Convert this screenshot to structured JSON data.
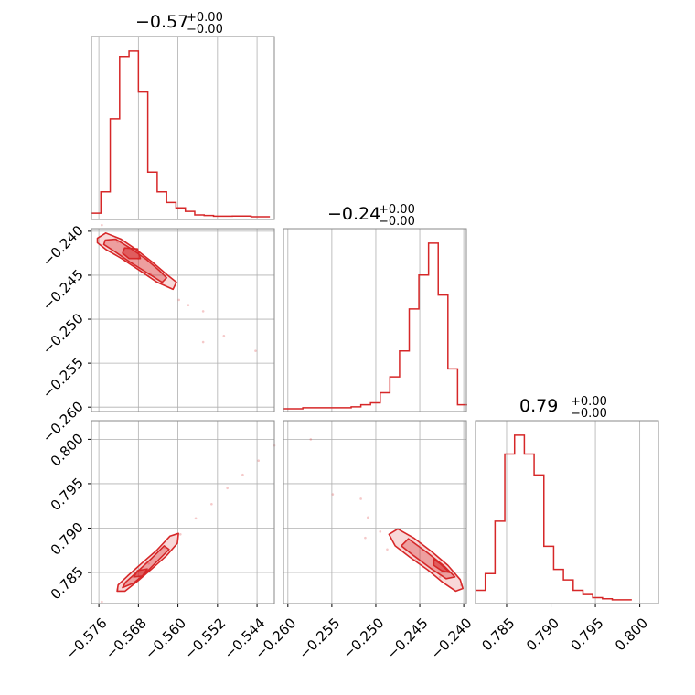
{
  "chart_data": {
    "type": "corner",
    "color": "#d62728",
    "grid": true,
    "parameters": [
      {
        "title": {
          "main": "−0.57",
          "upper": "+0.00",
          "lower": "−0.00"
        },
        "range": [
          -0.5775,
          -0.5405
        ],
        "ticks": [
          -0.576,
          -0.568,
          -0.56,
          -0.552,
          -0.544
        ],
        "tick_labels": [
          "−0.576",
          "−0.568",
          "−0.560",
          "−0.552",
          "−0.544"
        ],
        "hist": {
          "bin_edges": [
            -0.5775,
            -0.5756,
            -0.5737,
            -0.5718,
            -0.5699,
            -0.568,
            -0.5661,
            -0.5642,
            -0.5623,
            -0.5604,
            -0.5585,
            -0.5566,
            -0.5547,
            -0.5528,
            -0.5509,
            -0.549,
            -0.5471,
            -0.5452,
            -0.5433,
            -0.5414
          ],
          "counts": [
            2,
            14,
            55,
            90,
            93,
            70,
            25,
            14,
            8,
            5,
            3,
            1,
            0.7,
            0.3,
            0.3,
            0.4,
            0.4,
            0,
            0
          ]
        }
      },
      {
        "title": {
          "main": "−0.24",
          "upper": "+0.00",
          "lower": "−0.00"
        },
        "range": [
          -0.2605,
          -0.2397
        ],
        "ticks": [
          -0.26,
          -0.255,
          -0.25,
          -0.245,
          -0.24
        ],
        "tick_labels": [
          "−0.260",
          "−0.255",
          "−0.250",
          "−0.245",
          "−0.240"
        ],
        "hist": {
          "bin_edges": [
            -0.2605,
            -0.2594,
            -0.2583,
            -0.2572,
            -0.2561,
            -0.255,
            -0.2539,
            -0.2528,
            -0.2517,
            -0.2506,
            -0.2495,
            -0.2484,
            -0.2473,
            -0.2462,
            -0.2451,
            -0.244,
            -0.2429,
            -0.2418,
            -0.2407,
            -0.2396
          ],
          "counts": [
            0,
            0,
            0.5,
            0.5,
            0.5,
            0.5,
            0.5,
            1,
            2,
            3,
            8,
            16,
            29,
            50,
            67,
            83,
            57,
            20,
            2
          ]
        }
      },
      {
        "title": {
          "main": "0.79",
          "upper": "+0.00",
          "lower": "−0.00"
        },
        "range": [
          0.7815,
          0.8021
        ],
        "ticks": [
          0.785,
          0.79,
          0.795,
          0.8
        ],
        "tick_labels": [
          "0.785",
          "0.790",
          "0.795",
          "0.800"
        ],
        "hist": {
          "bin_edges": [
            0.7815,
            0.7826,
            0.7837,
            0.7848,
            0.7859,
            0.787,
            0.7881,
            0.7892,
            0.7903,
            0.7914,
            0.7925,
            0.7936,
            0.7947,
            0.7958,
            0.7969,
            0.798,
            0.7991
          ],
          "counts": [
            5,
            13,
            38,
            70,
            79,
            70,
            60,
            26,
            15,
            10,
            5,
            3,
            1.5,
            1,
            0.5,
            0.5
          ]
        }
      }
    ],
    "pairs": [
      {
        "x_param": 0,
        "y_param": 1,
        "samples": [
          [
            -0.5754,
            -0.2393
          ],
          [
            -0.5722,
            -0.2412
          ],
          [
            -0.568,
            -0.2431
          ],
          [
            -0.5655,
            -0.2448
          ],
          [
            -0.5598,
            -0.2478
          ],
          [
            -0.5579,
            -0.2484
          ],
          [
            -0.5549,
            -0.2491
          ],
          [
            -0.5549,
            -0.2526
          ],
          [
            -0.5507,
            -0.2519
          ],
          [
            -0.5443,
            -0.2536
          ]
        ],
        "contours": [
          [
            [
              -0.5763,
              -0.2408
            ],
            [
              -0.5746,
              -0.2402
            ],
            [
              -0.5715,
              -0.2409
            ],
            [
              -0.5684,
              -0.2421
            ],
            [
              -0.5652,
              -0.2435
            ],
            [
              -0.5623,
              -0.2449
            ],
            [
              -0.5603,
              -0.2458
            ],
            [
              -0.561,
              -0.2466
            ],
            [
              -0.5642,
              -0.2458
            ],
            [
              -0.5679,
              -0.2444
            ],
            [
              -0.5714,
              -0.2431
            ],
            [
              -0.5745,
              -0.2421
            ],
            [
              -0.5763,
              -0.2413
            ]
          ],
          [
            [
              -0.5747,
              -0.241
            ],
            [
              -0.5726,
              -0.2409
            ],
            [
              -0.5697,
              -0.2419
            ],
            [
              -0.5664,
              -0.2432
            ],
            [
              -0.5637,
              -0.2445
            ],
            [
              -0.5623,
              -0.2453
            ],
            [
              -0.5632,
              -0.2458
            ],
            [
              -0.5663,
              -0.2447
            ],
            [
              -0.5697,
              -0.2435
            ],
            [
              -0.5728,
              -0.2423
            ],
            [
              -0.575,
              -0.2415
            ]
          ],
          [
            [
              -0.5708,
              -0.2419
            ],
            [
              -0.5682,
              -0.242
            ],
            [
              -0.5676,
              -0.2431
            ],
            [
              -0.5699,
              -0.2431
            ],
            [
              -0.5712,
              -0.2425
            ]
          ]
        ]
      },
      {
        "x_param": 0,
        "y_param": 2,
        "samples": [
          [
            -0.5754,
            0.7817
          ],
          [
            -0.5722,
            0.7831
          ],
          [
            -0.5691,
            0.7845
          ],
          [
            -0.5659,
            0.786
          ],
          [
            -0.5627,
            0.7878
          ],
          [
            -0.5595,
            0.7893
          ],
          [
            -0.5564,
            0.7911
          ],
          [
            -0.5532,
            0.7927
          ],
          [
            -0.55,
            0.7945
          ],
          [
            -0.5469,
            0.796
          ],
          [
            -0.5437,
            0.7976
          ],
          [
            -0.5405,
            0.7993
          ]
        ],
        "contours": [
          [
            [
              -0.5723,
              0.7829
            ],
            [
              -0.5707,
              0.7829
            ],
            [
              -0.568,
              0.7841
            ],
            [
              -0.5651,
              0.7855
            ],
            [
              -0.5623,
              0.7869
            ],
            [
              -0.5601,
              0.7883
            ],
            [
              -0.5599,
              0.7894
            ],
            [
              -0.5616,
              0.7891
            ],
            [
              -0.5643,
              0.7875
            ],
            [
              -0.5674,
              0.786
            ],
            [
              -0.5702,
              0.7846
            ],
            [
              -0.5721,
              0.7836
            ]
          ],
          [
            [
              -0.5712,
              0.7833
            ],
            [
              -0.569,
              0.7838
            ],
            [
              -0.5668,
              0.7848
            ],
            [
              -0.5643,
              0.7862
            ],
            [
              -0.5618,
              0.7876
            ],
            [
              -0.5628,
              0.788
            ],
            [
              -0.5653,
              0.7866
            ],
            [
              -0.5682,
              0.7851
            ],
            [
              -0.5706,
              0.7839
            ]
          ],
          [
            [
              -0.5689,
              0.7845
            ],
            [
              -0.5672,
              0.7846
            ],
            [
              -0.5662,
              0.7854
            ],
            [
              -0.5682,
              0.7852
            ]
          ]
        ]
      },
      {
        "x_param": 1,
        "y_param": 2,
        "samples": [
          [
            -0.2574,
            0.8
          ],
          [
            -0.2549,
            0.7938
          ],
          [
            -0.2517,
            0.7933
          ],
          [
            -0.2512,
            0.7889
          ],
          [
            -0.2487,
            0.7876
          ],
          [
            -0.2455,
            0.7864
          ],
          [
            -0.2427,
            0.7845
          ],
          [
            -0.2403,
            0.7836
          ],
          [
            -0.2509,
            0.7912
          ],
          [
            -0.2495,
            0.7896
          ]
        ],
        "contours": [
          [
            [
              -0.2475,
              0.7899
            ],
            [
              -0.2485,
              0.7893
            ],
            [
              -0.2478,
              0.788
            ],
            [
              -0.2461,
              0.7867
            ],
            [
              -0.2441,
              0.7853
            ],
            [
              -0.2424,
              0.7839
            ],
            [
              -0.2409,
              0.7829
            ],
            [
              -0.2401,
              0.7832
            ],
            [
              -0.2404,
              0.7842
            ],
            [
              -0.2418,
              0.7858
            ],
            [
              -0.2437,
              0.7874
            ],
            [
              -0.2457,
              0.7889
            ]
          ],
          [
            [
              -0.2463,
              0.7888
            ],
            [
              -0.2471,
              0.788
            ],
            [
              -0.2457,
              0.7869
            ],
            [
              -0.2438,
              0.7855
            ],
            [
              -0.242,
              0.7843
            ],
            [
              -0.241,
              0.7845
            ],
            [
              -0.2422,
              0.7857
            ],
            [
              -0.2441,
              0.7872
            ]
          ],
          [
            [
              -0.2434,
              0.7865
            ],
            [
              -0.2434,
              0.7858
            ],
            [
              -0.2425,
              0.7852
            ],
            [
              -0.2416,
              0.785
            ],
            [
              -0.2427,
              0.786
            ]
          ]
        ]
      }
    ]
  }
}
